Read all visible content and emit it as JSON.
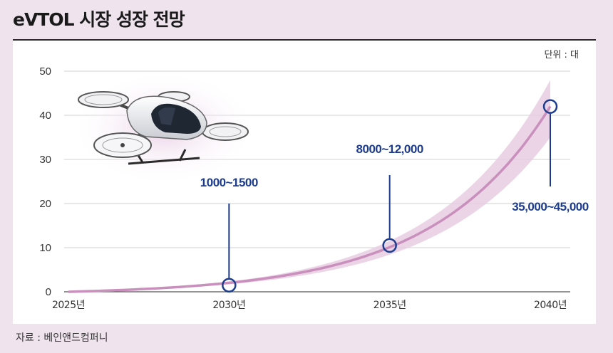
{
  "title": "eVTOL 시장 성장 전망",
  "unit_label": "단위 : 대",
  "source": "자료 : 베인앤드컴퍼니",
  "colors": {
    "background": "#efe3ee",
    "curve": "#c98fbd",
    "band": "#e9cde3",
    "annotation": "#1d3c8e",
    "grid": "#d0d0d0"
  },
  "icons": [
    "evtol-aircraft-icon"
  ],
  "chart_data": {
    "type": "line",
    "title": "eVTOL 시장 성장 전망",
    "xlabel": "",
    "ylabel": "",
    "x_tick_labels": [
      "2025년",
      "2030년",
      "2035년",
      "2040년"
    ],
    "x": [
      2025,
      2030,
      2035,
      2040
    ],
    "ylim": [
      0,
      50
    ],
    "y_ticks": [
      0,
      10,
      20,
      30,
      40,
      50
    ],
    "grid": true,
    "series": [
      {
        "values": [
          0,
          1.5,
          10.5,
          42
        ]
      }
    ],
    "band_upper_2040": 48,
    "band_lower_2040": 35,
    "annotations": [
      {
        "x": 2030,
        "y": 1.5,
        "label": "1000~1500"
      },
      {
        "x": 2035,
        "y": 10.5,
        "label": "8000~12,000"
      },
      {
        "x": 2040,
        "y": 42,
        "label": "35,000~45,000"
      }
    ]
  }
}
